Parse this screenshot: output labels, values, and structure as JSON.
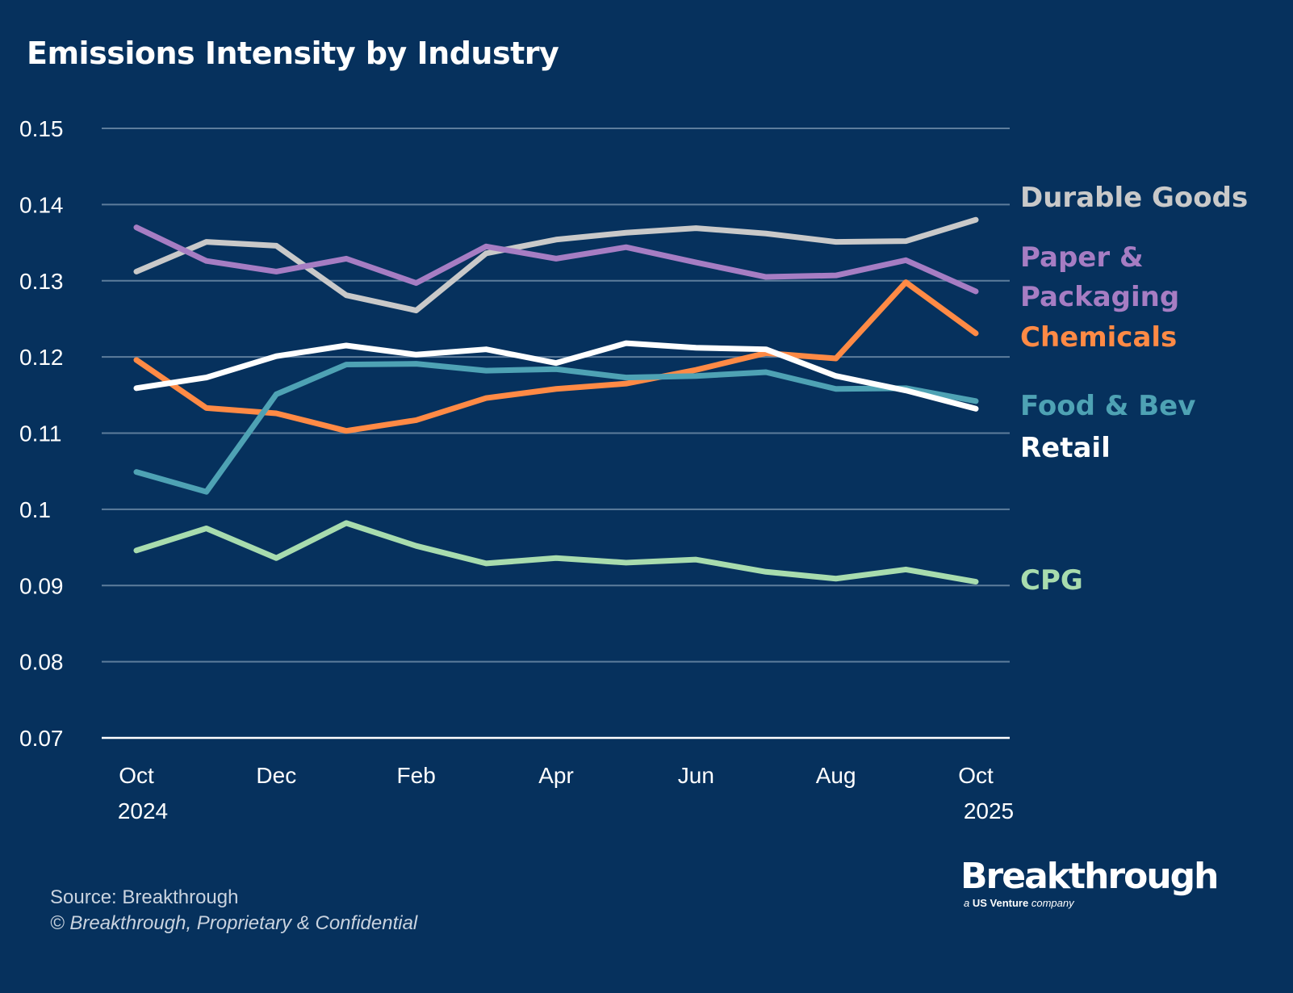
{
  "chart_data": {
    "type": "line",
    "title": "Emissions Intensity by Industry",
    "x": [
      "Oct 2024",
      "Nov 2024",
      "Dec 2024",
      "Jan 2025",
      "Feb 2025",
      "Mar 2025",
      "Apr 2025",
      "May 2025",
      "Jun 2025",
      "Jul 2025",
      "Aug 2025",
      "Sep 2025",
      "Oct 2025"
    ],
    "x_tick_labels": [
      {
        "index": 0,
        "line1": "Oct",
        "line2": "2024"
      },
      {
        "index": 2,
        "line1": "Dec",
        "line2": ""
      },
      {
        "index": 4,
        "line1": "Feb",
        "line2": ""
      },
      {
        "index": 6,
        "line1": "Apr",
        "line2": ""
      },
      {
        "index": 8,
        "line1": "Jun",
        "line2": ""
      },
      {
        "index": 10,
        "line1": "Aug",
        "line2": ""
      },
      {
        "index": 12,
        "line1": "Oct",
        "line2": "2025"
      }
    ],
    "y_ticks": [
      "0.07",
      "0.08",
      "0.09",
      "0.1",
      "0.11",
      "0.12",
      "0.13",
      "0.14",
      "0.15"
    ],
    "ylim": [
      0.07,
      0.15
    ],
    "grid": "horizontal",
    "legend": "right, direct labels",
    "series": [
      {
        "name": "Durable Goods",
        "color": "#c9c9c9",
        "values": [
          0.1312,
          0.1351,
          0.1346,
          0.1281,
          0.1261,
          0.1336,
          0.1354,
          0.1363,
          0.1369,
          0.1362,
          0.1351,
          0.1352,
          0.138
        ]
      },
      {
        "name": "Paper & Packaging",
        "label_lines": [
          "Paper &",
          "Packaging"
        ],
        "color": "#a67dc3",
        "values": [
          0.137,
          0.1326,
          0.1312,
          0.1329,
          0.1297,
          0.1345,
          0.1329,
          0.1344,
          0.1324,
          0.1305,
          0.1307,
          0.1327,
          0.1286
        ]
      },
      {
        "name": "Chemicals",
        "color": "#ff8a45",
        "values": [
          0.1196,
          0.1133,
          0.1126,
          0.1103,
          0.1117,
          0.1146,
          0.1158,
          0.1165,
          0.1183,
          0.1205,
          0.1198,
          0.1298,
          0.1231
        ]
      },
      {
        "name": "Food & Bev",
        "color": "#4ea2b4",
        "values": [
          0.1049,
          0.1023,
          0.1151,
          0.119,
          0.1191,
          0.1182,
          0.1184,
          0.1173,
          0.1175,
          0.118,
          0.1158,
          0.1159,
          0.1142
        ]
      },
      {
        "name": "Retail",
        "color": "#ffffff",
        "values": [
          0.1159,
          0.1173,
          0.1201,
          0.1215,
          0.1203,
          0.121,
          0.1192,
          0.1218,
          0.1212,
          0.121,
          0.1175,
          0.1156,
          0.1132
        ]
      },
      {
        "name": "CPG",
        "color": "#a8dcae",
        "values": [
          0.0946,
          0.0975,
          0.0936,
          0.0982,
          0.0952,
          0.0929,
          0.0936,
          0.093,
          0.0934,
          0.0918,
          0.0909,
          0.0921,
          0.0905
        ]
      }
    ]
  },
  "footer": {
    "source": "Source: Breakthrough",
    "copyright": "© Breakthrough, Proprietary & Confidential"
  },
  "logo": {
    "name": "Breakthrough",
    "tagline_a": "a",
    "tagline_brand": "US Venture",
    "tagline_rest": "company"
  }
}
